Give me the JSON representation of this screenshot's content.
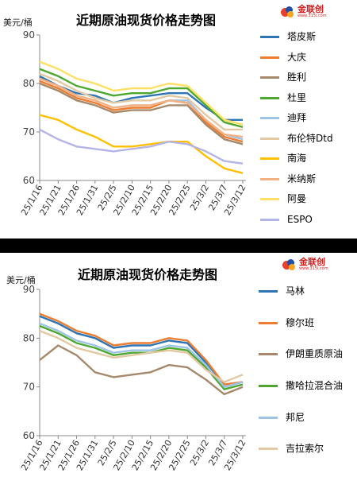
{
  "chart_data": [
    {
      "type": "line",
      "title": "近期原油现货价格走势图",
      "ylabel": "美元/桶",
      "ylim": [
        60,
        90
      ],
      "yticks": [
        60,
        70,
        80,
        90
      ],
      "x": [
        "25/1/16",
        "25/1/21",
        "25/1/26",
        "25/1/31",
        "25/2/5",
        "25/2/10",
        "25/2/15",
        "25/2/20",
        "25/2/25",
        "25/3/2",
        "25/3/7",
        "25/3/12"
      ],
      "grid": false,
      "legend_position": "right",
      "logo": {
        "text": "金联创",
        "sub": "www.315i.com"
      },
      "series": [
        {
          "name": "塔皮斯",
          "color": "#2e75b6",
          "values": [
            81.5,
            79.5,
            78,
            77.5,
            76,
            77,
            77.5,
            78,
            78,
            75,
            72.5,
            72.5
          ]
        },
        {
          "name": "大庆",
          "color": "#ed7d31",
          "values": [
            80.5,
            79,
            77,
            76,
            74.5,
            75,
            75,
            76.5,
            76,
            72,
            69,
            68
          ]
        },
        {
          "name": "胜利",
          "color": "#a5896a",
          "values": [
            80,
            78.5,
            76.5,
            75.5,
            74,
            74.5,
            74.5,
            75.5,
            75.5,
            71.5,
            68.5,
            67.5
          ]
        },
        {
          "name": "杜里",
          "color": "#4ea72e",
          "values": [
            83,
            81.5,
            79.5,
            78.5,
            77.5,
            78,
            78,
            79,
            79,
            75.5,
            72,
            71
          ]
        },
        {
          "name": "迪拜",
          "color": "#9dc3e6",
          "values": [
            81,
            79.5,
            77.5,
            76.5,
            75,
            75.5,
            75.5,
            76.5,
            76.5,
            72.5,
            69.5,
            68.5
          ]
        },
        {
          "name": "布伦特Dtd",
          "color": "#e3c9a3",
          "values": [
            82,
            80.5,
            78.5,
            77,
            76,
            76.5,
            76.5,
            77.5,
            77,
            73.5,
            70.5,
            70.5
          ]
        },
        {
          "name": "南海",
          "color": "#ffc000",
          "values": [
            73.5,
            72.5,
            70.5,
            69,
            67,
            67,
            67.5,
            68,
            68,
            65,
            62.5,
            61.5
          ]
        },
        {
          "name": "米纳斯",
          "color": "#f4b183",
          "values": [
            81,
            79.5,
            77.5,
            76.5,
            75,
            75.5,
            75.5,
            76.5,
            76,
            72.5,
            69.5,
            69
          ]
        },
        {
          "name": "阿曼",
          "color": "#ffe066",
          "values": [
            84.5,
            83,
            81,
            80,
            78.5,
            79,
            79,
            80,
            79.5,
            76,
            72.5,
            71.5
          ]
        },
        {
          "name": "ESPO",
          "color": "#b4b4e6",
          "values": [
            70.5,
            68.5,
            67,
            66.5,
            66,
            66.5,
            67,
            68,
            67.5,
            66,
            64,
            63.5
          ]
        }
      ]
    },
    {
      "type": "line",
      "title": "近期原油现货价格走势图",
      "ylabel": "美元/桶",
      "ylim": [
        60,
        90
      ],
      "yticks": [
        60,
        70,
        80,
        90
      ],
      "x": [
        "25/1/16",
        "25/1/21",
        "25/1/26",
        "25/1/31",
        "25/2/5",
        "25/2/10",
        "25/2/15",
        "25/2/20",
        "25/2/25",
        "25/3/2",
        "25/3/7",
        "25/3/12"
      ],
      "grid": false,
      "legend_position": "right",
      "logo": {
        "text": "金联创",
        "sub": "www.315i.com"
      },
      "series": [
        {
          "name": "马林",
          "color": "#2e75b6",
          "values": [
            84.5,
            83,
            81,
            80,
            78,
            78.5,
            78.5,
            79.5,
            79,
            75,
            70,
            71
          ]
        },
        {
          "name": "穆尔班",
          "color": "#ed7d31",
          "values": [
            85,
            83.5,
            81.5,
            80.5,
            78.5,
            79,
            79,
            80,
            79.5,
            75.5,
            70.5,
            71
          ]
        },
        {
          "name": "伊朗重质原油",
          "color": "#a5896a",
          "values": [
            75.5,
            78.5,
            76.5,
            73,
            72,
            72.5,
            73,
            74.5,
            74,
            71.5,
            68.5,
            70
          ]
        },
        {
          "name": "撒哈拉混合油",
          "color": "#4ea72e",
          "values": [
            82.5,
            81,
            79,
            78,
            76.5,
            77,
            77,
            78,
            77.5,
            74,
            69.5,
            70.5
          ]
        },
        {
          "name": "邦尼",
          "color": "#9dc3e6",
          "values": [
            83,
            81.5,
            79.5,
            78.5,
            77,
            77.5,
            77.5,
            78.5,
            78,
            74.5,
            70,
            71
          ]
        },
        {
          "name": "吉拉索尔",
          "color": "#e3c9a3",
          "values": [
            81.5,
            80,
            78,
            77,
            76,
            76.5,
            77,
            77.5,
            77,
            73.5,
            71,
            72.5
          ]
        }
      ]
    }
  ]
}
